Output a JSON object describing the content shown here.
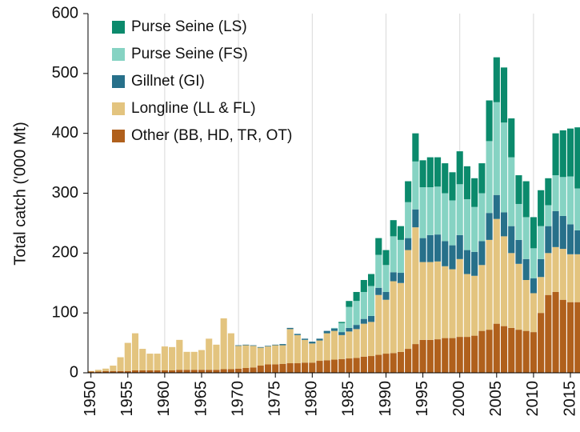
{
  "chart_data": {
    "type": "stacked_bar",
    "y_label": "Total catch ('000 Mt)",
    "x": [
      1950,
      1951,
      1952,
      1953,
      1954,
      1955,
      1956,
      1957,
      1958,
      1959,
      1960,
      1961,
      1962,
      1963,
      1964,
      1965,
      1966,
      1967,
      1968,
      1969,
      1970,
      1971,
      1972,
      1973,
      1974,
      1975,
      1976,
      1977,
      1978,
      1979,
      1980,
      1981,
      1982,
      1983,
      1984,
      1985,
      1986,
      1987,
      1988,
      1989,
      1990,
      1991,
      1992,
      1993,
      1994,
      1995,
      1996,
      1997,
      1998,
      1999,
      2000,
      2001,
      2002,
      2003,
      2004,
      2005,
      2006,
      2007,
      2008,
      2009,
      2010,
      2011,
      2012,
      2013,
      2014,
      2015,
      2016
    ],
    "series": [
      {
        "name": "Other (BB, HD, TR, OT)",
        "color": "#b0601c",
        "values": [
          2,
          2,
          3,
          3,
          3,
          3,
          4,
          4,
          4,
          4,
          4,
          4,
          5,
          5,
          5,
          5,
          5,
          5,
          6,
          6,
          7,
          8,
          9,
          12,
          14,
          14,
          15,
          16,
          16,
          17,
          17,
          20,
          21,
          22,
          23,
          24,
          25,
          27,
          28,
          30,
          32,
          33,
          35,
          40,
          48,
          55,
          55,
          56,
          58,
          58,
          60,
          60,
          62,
          70,
          72,
          82,
          78,
          75,
          72,
          70,
          68,
          100,
          130,
          135,
          122,
          118,
          118
        ]
      },
      {
        "name": "Longline (LL & FL)",
        "color": "#e3c47f",
        "values": [
          1,
          3,
          4,
          9,
          23,
          47,
          62,
          36,
          28,
          28,
          40,
          39,
          50,
          30,
          30,
          33,
          52,
          42,
          85,
          60,
          38,
          38,
          36,
          30,
          30,
          32,
          31,
          57,
          47,
          38,
          32,
          34,
          45,
          48,
          40,
          45,
          48,
          55,
          57,
          100,
          90,
          120,
          115,
          165,
          195,
          130,
          130,
          130,
          120,
          115,
          130,
          105,
          100,
          110,
          150,
          175,
          150,
          125,
          110,
          85,
          65,
          60,
          70,
          75,
          85,
          80,
          80
        ]
      },
      {
        "name": "Gillnet (GI)",
        "color": "#27708a",
        "values": [
          0,
          0,
          0,
          0,
          0,
          0,
          0,
          0,
          0,
          0,
          0,
          0,
          0,
          0,
          0,
          0,
          0,
          0,
          0,
          0,
          1,
          1,
          1,
          1,
          1,
          1,
          2,
          2,
          2,
          2,
          3,
          3,
          4,
          4,
          5,
          6,
          7,
          8,
          10,
          12,
          13,
          15,
          17,
          20,
          30,
          40,
          45,
          45,
          42,
          40,
          40,
          40,
          40,
          40,
          45,
          40,
          40,
          45,
          40,
          35,
          25,
          30,
          45,
          60,
          55,
          50,
          40
        ]
      },
      {
        "name": "Purse Seine (FS)",
        "color": "#86d3c3",
        "values": [
          0,
          0,
          0,
          0,
          0,
          0,
          0,
          0,
          0,
          0,
          0,
          0,
          0,
          0,
          0,
          0,
          0,
          0,
          0,
          0,
          0,
          0,
          0,
          0,
          0,
          0,
          0,
          0,
          0,
          0,
          0,
          0,
          0,
          1,
          15,
          35,
          40,
          45,
          50,
          55,
          45,
          60,
          55,
          60,
          80,
          85,
          80,
          80,
          80,
          75,
          85,
          85,
          75,
          80,
          120,
          155,
          150,
          115,
          60,
          70,
          50,
          55,
          35,
          60,
          65,
          80,
          70
        ]
      },
      {
        "name": "Purse Seine (LS)",
        "color": "#0b8a6c",
        "values": [
          0,
          0,
          0,
          0,
          0,
          0,
          0,
          0,
          0,
          0,
          0,
          0,
          0,
          0,
          0,
          0,
          0,
          0,
          0,
          0,
          0,
          0,
          0,
          0,
          0,
          0,
          0,
          0,
          0,
          0,
          0,
          0,
          0,
          0,
          2,
          10,
          15,
          20,
          20,
          28,
          25,
          27,
          23,
          35,
          47,
          45,
          50,
          49,
          50,
          47,
          55,
          55,
          48,
          50,
          68,
          75,
          92,
          65,
          48,
          60,
          52,
          60,
          45,
          70,
          78,
          80,
          102
        ]
      }
    ],
    "xlim": [
      1949.6,
      2016.3
    ],
    "xticks": [
      1950,
      1955,
      1960,
      1965,
      1970,
      1975,
      1980,
      1985,
      1990,
      1995,
      2000,
      2005,
      2010,
      2015
    ],
    "ylim": [
      0,
      600
    ],
    "yticks": [
      0,
      100,
      200,
      300,
      400,
      500,
      600
    ],
    "grid": "x",
    "legend": "top-left"
  }
}
